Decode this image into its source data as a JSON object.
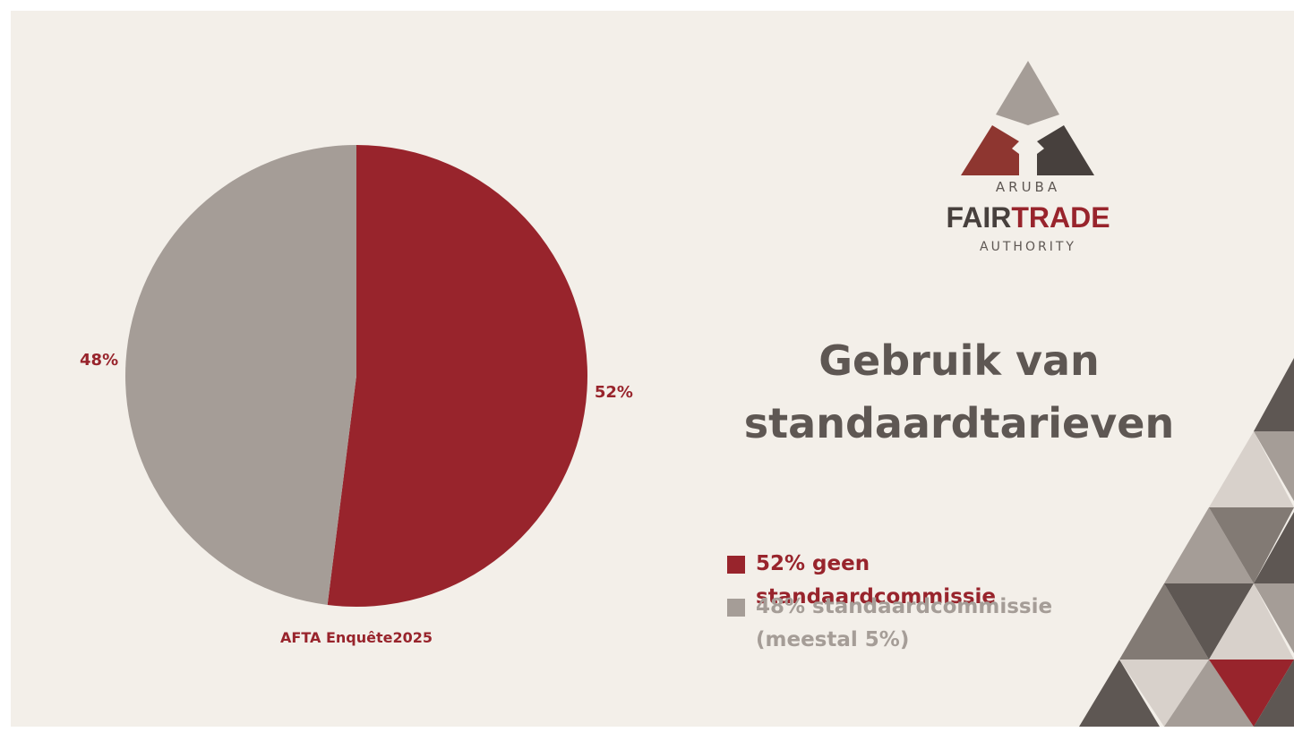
{
  "chart_data": {
    "type": "pie",
    "title": "Gebruik van standaardtarieven",
    "categories": [
      "52% geen standaardcommissie",
      "48% standaardcommissie (meestal 5%)"
    ],
    "values": [
      52,
      48
    ],
    "value_labels": [
      "52%",
      "48%"
    ],
    "colors": [
      "#98242c",
      "#a59d97"
    ],
    "source": "AFTA Enquête2025"
  },
  "logo": {
    "top": "ARUBA",
    "fair": "FAIR",
    "trade": "TRADE",
    "bottom": "AUTHORITY"
  }
}
